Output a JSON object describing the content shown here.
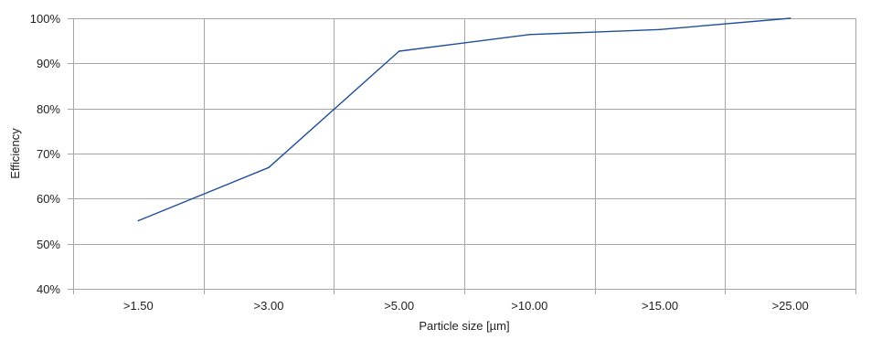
{
  "chart_data": {
    "type": "line",
    "categories": [
      ">1.50",
      ">3.00",
      ">5.00",
      ">10.00",
      ">15.00",
      ">25.00"
    ],
    "series": [
      {
        "values": [
          55.1,
          66.9,
          92.7,
          96.4,
          97.5,
          100.0
        ],
        "color": "#1f4e9a"
      }
    ],
    "xlabel": "Particle size [µm]",
    "ylabel": "Efficiency",
    "ylim": [
      40,
      100
    ],
    "yticks": [
      "40%",
      "50%",
      "60%",
      "70%",
      "80%",
      "90%",
      "100%"
    ],
    "grid": true,
    "grid_color": "#a6a6a6"
  }
}
